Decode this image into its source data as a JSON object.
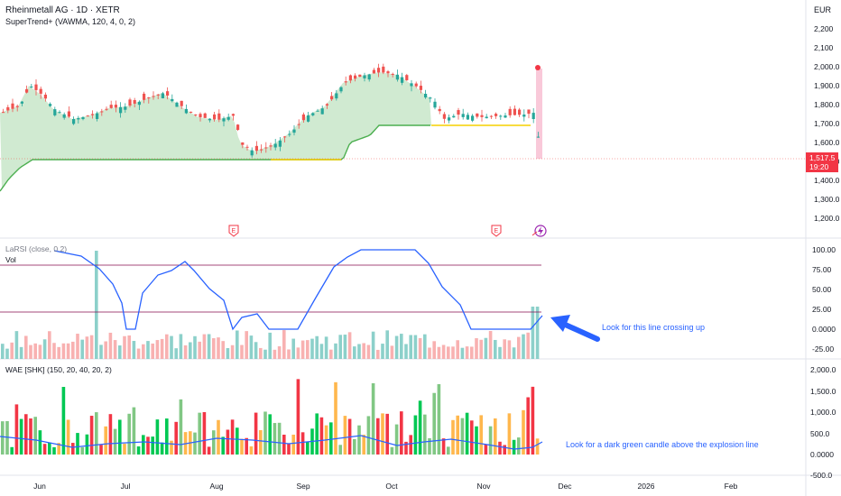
{
  "header": {
    "symbol_line": "Rheinmetall AG · 1D · XETR",
    "indicator_line": "SuperTrend+ (VAWMA, 120, 4, 0, 2)",
    "currency": "EUR"
  },
  "price_pane": {
    "y_ticks": [
      "2,200",
      "2,100",
      "2,000.0",
      "1,900.0",
      "1,800.0",
      "1,700.0",
      "1,600.0",
      "1,500.0",
      "1,400.0",
      "1,300.0",
      "1,200.0"
    ],
    "last_price": "1,517.5",
    "countdown": "19:20",
    "earnings_marker": "E",
    "event_icon": "lightning-icon"
  },
  "rsi_pane": {
    "label": "LaRSI (close, 0.2)",
    "vol_label": "Vol",
    "y_ticks": [
      "100.00",
      "75.00",
      "50.00",
      "25.00",
      "0.0000",
      "-25.00"
    ]
  },
  "wae_pane": {
    "label": "WAE [SHK] (150, 20, 40, 20, 2)",
    "y_ticks": [
      "2,000.0",
      "1,500.0",
      "1,000.0",
      "500.0",
      "0.0000",
      "-500.0"
    ]
  },
  "time_axis": {
    "labels": [
      "Jun",
      "Jul",
      "Aug",
      "Sep",
      "Oct",
      "Nov",
      "Dec",
      "2026",
      "Feb"
    ]
  },
  "annotations": {
    "rsi_note": "Look for this line crossing up",
    "wae_note": "Look for a dark green candle above the explosion line"
  },
  "colors": {
    "bull": "#26a69a",
    "bear": "#ef5350",
    "supertrend_up": "#4caf50",
    "supertrend_flat": "#f5d000",
    "fill": "#c8e6c9",
    "rsi_line": "#2962ff",
    "level_line": "#880e4f",
    "wae_bull_dark": "#00c853",
    "wae_bull_light": "#81c784",
    "wae_bear_dark": "#f23645",
    "wae_bear_light": "#ffb74d",
    "explosion_line": "#2962ff",
    "arrow": "#2962ff"
  }
}
